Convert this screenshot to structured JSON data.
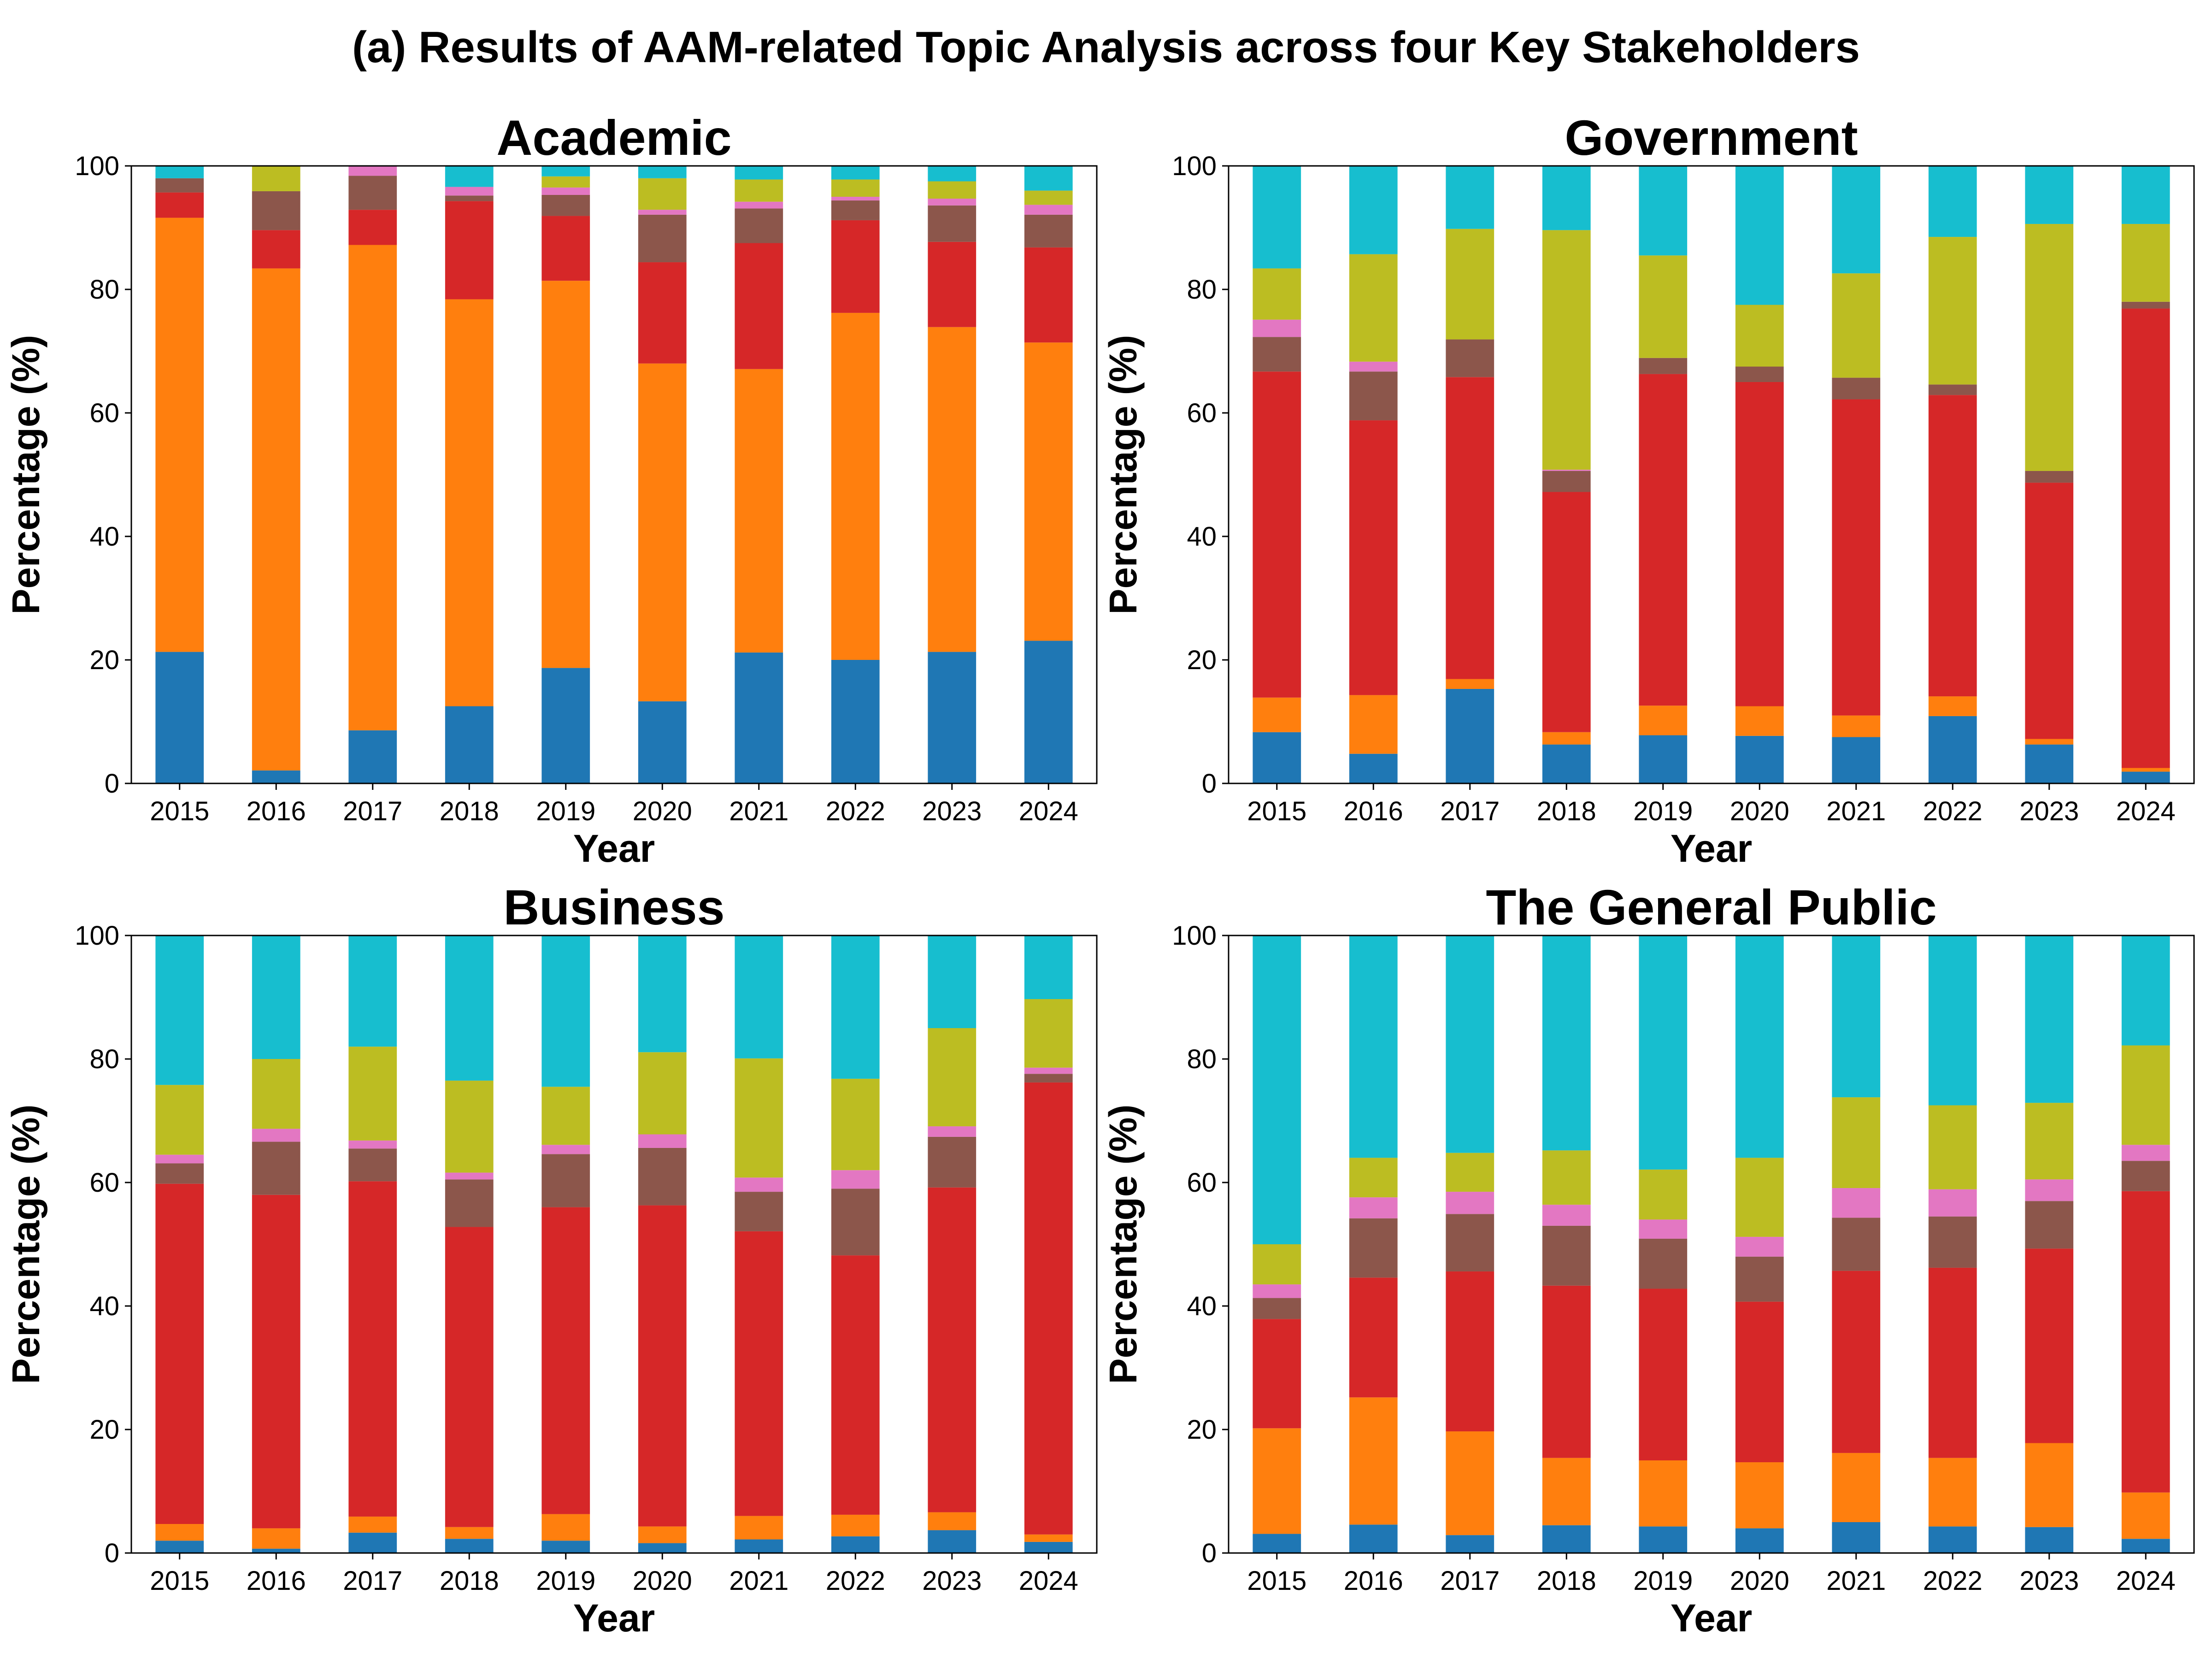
{
  "figure": {
    "title": "(a) Results of AAM-related Topic Analysis across four Key Stakeholders"
  },
  "colors": [
    "#1f77b4",
    "#ff7f0e",
    "#d62728",
    "#8c564b",
    "#e377c2",
    "#bcbd22",
    "#17becf"
  ],
  "chart_data": [
    {
      "type": "bar",
      "stacked": true,
      "title": "Academic",
      "xlabel": "Year",
      "ylabel": "Percentage (%)",
      "ylim": [
        0,
        100
      ],
      "yticks": [
        "0",
        "20",
        "40",
        "60",
        "80",
        "100"
      ],
      "categories": [
        "2015",
        "2016",
        "2017",
        "2018",
        "2019",
        "2020",
        "2021",
        "2022",
        "2023",
        "2024"
      ],
      "series": [
        {
          "values": [
            21.3,
            2.1,
            8.6,
            12.5,
            18.7,
            13.3,
            21.2,
            20.0,
            21.3,
            23.1
          ]
        },
        {
          "values": [
            70.3,
            81.3,
            78.6,
            65.9,
            62.7,
            54.7,
            45.9,
            56.2,
            52.6,
            48.3
          ]
        },
        {
          "values": [
            4.1,
            6.2,
            5.7,
            15.9,
            10.5,
            16.4,
            20.4,
            15.0,
            13.8,
            15.4
          ]
        },
        {
          "values": [
            2.3,
            6.3,
            5.5,
            0.9,
            3.4,
            7.7,
            5.6,
            3.2,
            5.9,
            5.3
          ]
        },
        {
          "values": [
            0.0,
            0.0,
            1.6,
            1.4,
            1.2,
            0.8,
            1.1,
            0.6,
            1.1,
            1.6
          ]
        },
        {
          "values": [
            0.0,
            4.1,
            0.0,
            0.0,
            1.8,
            5.1,
            3.6,
            2.8,
            2.8,
            2.3
          ]
        },
        {
          "values": [
            2.0,
            0.0,
            0.0,
            3.4,
            1.7,
            2.0,
            2.2,
            2.2,
            2.5,
            4.0
          ]
        }
      ]
    },
    {
      "type": "bar",
      "stacked": true,
      "title": "Government",
      "xlabel": "Year",
      "ylabel": "Percentage (%)",
      "ylim": [
        0,
        100
      ],
      "yticks": [
        "0",
        "20",
        "40",
        "60",
        "80",
        "100"
      ],
      "categories": [
        "2015",
        "2016",
        "2017",
        "2018",
        "2019",
        "2020",
        "2021",
        "2022",
        "2023",
        "2024"
      ],
      "series": [
        {
          "values": [
            8.3,
            4.8,
            15.3,
            6.3,
            7.8,
            7.7,
            7.5,
            10.9,
            6.3,
            1.9
          ]
        },
        {
          "values": [
            5.6,
            9.5,
            1.6,
            2.0,
            4.8,
            4.8,
            3.5,
            3.2,
            0.9,
            0.6
          ]
        },
        {
          "values": [
            52.8,
            44.5,
            48.9,
            38.9,
            53.7,
            52.5,
            51.2,
            48.8,
            41.5,
            74.4
          ]
        },
        {
          "values": [
            5.6,
            7.9,
            6.1,
            3.4,
            2.6,
            2.5,
            3.5,
            1.7,
            1.9,
            1.1
          ]
        },
        {
          "values": [
            2.8,
            1.6,
            0.0,
            0.2,
            0.0,
            0.0,
            0.0,
            0.0,
            0.0,
            0.0
          ]
        },
        {
          "values": [
            8.3,
            17.4,
            17.9,
            38.8,
            16.6,
            10.0,
            16.9,
            23.9,
            40.0,
            12.6
          ]
        },
        {
          "values": [
            16.6,
            14.3,
            10.2,
            10.4,
            14.5,
            22.5,
            17.4,
            11.5,
            9.4,
            9.4
          ]
        }
      ]
    },
    {
      "type": "bar",
      "stacked": true,
      "title": "Business",
      "xlabel": "Year",
      "ylabel": "Percentage (%)",
      "ylim": [
        0,
        100
      ],
      "yticks": [
        "0",
        "20",
        "40",
        "60",
        "80",
        "100"
      ],
      "categories": [
        "2015",
        "2016",
        "2017",
        "2018",
        "2019",
        "2020",
        "2021",
        "2022",
        "2023",
        "2024"
      ],
      "series": [
        {
          "values": [
            2.0,
            0.7,
            3.3,
            2.3,
            2.0,
            1.6,
            2.2,
            2.7,
            3.7,
            1.8
          ]
        },
        {
          "values": [
            2.7,
            3.3,
            2.6,
            1.9,
            4.3,
            2.7,
            3.8,
            3.5,
            2.9,
            1.2
          ]
        },
        {
          "values": [
            55.1,
            54.0,
            54.3,
            48.6,
            49.7,
            52.0,
            46.1,
            42.0,
            52.6,
            73.2
          ]
        },
        {
          "values": [
            3.3,
            8.6,
            5.3,
            7.7,
            8.6,
            9.3,
            6.4,
            10.8,
            8.2,
            1.4
          ]
        },
        {
          "values": [
            1.4,
            2.1,
            1.3,
            1.1,
            1.5,
            2.2,
            2.3,
            3.0,
            1.7,
            1.0
          ]
        },
        {
          "values": [
            11.3,
            11.3,
            15.2,
            14.9,
            9.4,
            13.3,
            19.3,
            14.8,
            15.9,
            11.1
          ]
        },
        {
          "values": [
            24.2,
            20.0,
            18.0,
            23.5,
            24.5,
            18.9,
            19.9,
            23.2,
            15.0,
            10.3
          ]
        }
      ]
    },
    {
      "type": "bar",
      "stacked": true,
      "title": "The General Public",
      "xlabel": "Year",
      "ylabel": "Percentage (%)",
      "ylim": [
        0,
        100
      ],
      "yticks": [
        "0",
        "20",
        "40",
        "60",
        "80",
        "100"
      ],
      "categories": [
        "2015",
        "2016",
        "2017",
        "2018",
        "2019",
        "2020",
        "2021",
        "2022",
        "2023",
        "2024"
      ],
      "series": [
        {
          "values": [
            3.1,
            4.6,
            2.9,
            4.5,
            4.3,
            4.0,
            5.0,
            4.3,
            4.2,
            2.3
          ]
        },
        {
          "values": [
            17.1,
            20.6,
            16.8,
            10.9,
            10.7,
            10.7,
            11.2,
            11.1,
            13.6,
            7.5
          ]
        },
        {
          "values": [
            17.7,
            19.4,
            25.9,
            27.9,
            27.8,
            26.0,
            29.5,
            30.8,
            31.5,
            48.8
          ]
        },
        {
          "values": [
            3.4,
            9.6,
            9.3,
            9.7,
            8.1,
            7.3,
            8.6,
            8.3,
            7.7,
            4.9
          ]
        },
        {
          "values": [
            2.2,
            3.4,
            3.6,
            3.4,
            3.1,
            3.2,
            4.8,
            4.4,
            3.5,
            2.6
          ]
        },
        {
          "values": [
            6.5,
            6.4,
            6.3,
            8.8,
            8.1,
            12.8,
            14.7,
            13.6,
            12.4,
            16.1
          ]
        },
        {
          "values": [
            50.0,
            36.0,
            35.2,
            34.8,
            37.9,
            36.0,
            26.2,
            27.5,
            27.1,
            17.8
          ]
        }
      ]
    }
  ]
}
